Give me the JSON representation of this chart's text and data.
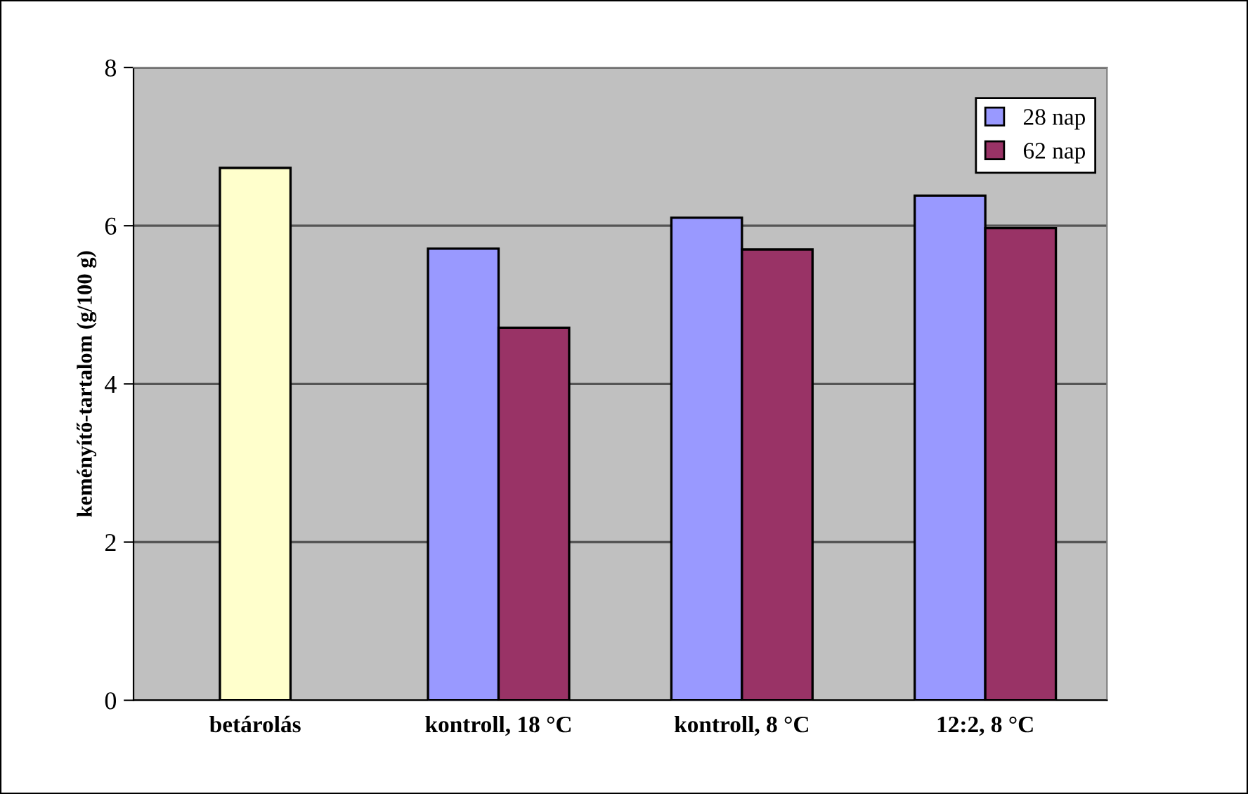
{
  "chart_data": {
    "type": "bar",
    "categories": [
      "betárolás",
      "kontroll, 18 °C",
      "kontroll, 8 °C",
      "12:2, 8 °C"
    ],
    "ylabel": "keményítő-tartalom (g/100 g)",
    "series": [
      {
        "color": "#ffffcc",
        "values": [
          6.73,
          null,
          null,
          null
        ]
      },
      {
        "name": "28 nap",
        "color": "#9999ff",
        "values": [
          null,
          5.71,
          6.1,
          6.38
        ]
      },
      {
        "name": "62 nap",
        "color": "#993366",
        "values": [
          null,
          4.71,
          5.7,
          5.97
        ]
      }
    ],
    "ylim": [
      0,
      8
    ],
    "yticks": [
      0,
      2,
      4,
      6,
      8
    ],
    "grid": "y",
    "legend": "top right"
  }
}
